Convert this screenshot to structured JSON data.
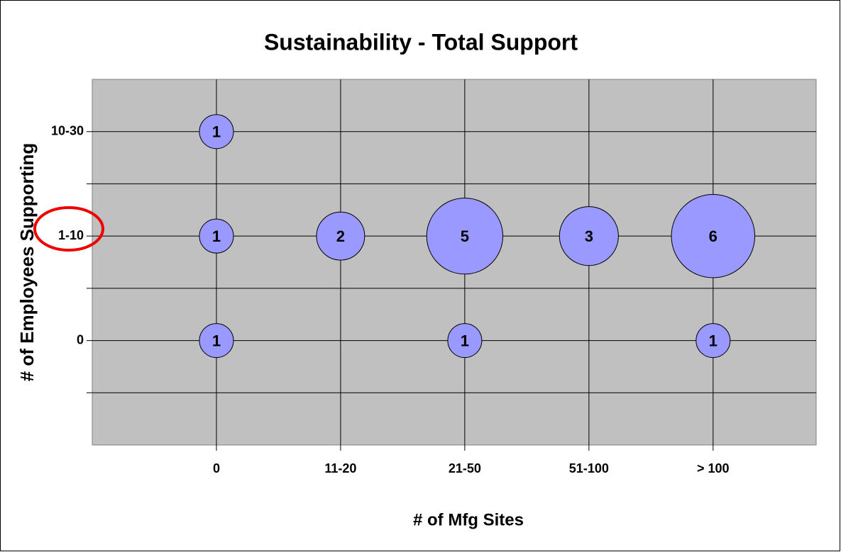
{
  "chart_data": {
    "type": "bubble",
    "title": "Sustainability - Total Support",
    "x_label": "# of Mfg Sites",
    "y_label": "# of Employees Supporting",
    "xlim": [
      0,
      5.83
    ],
    "ylim": [
      -2,
      5
    ],
    "xticks": [
      {
        "value": 1,
        "label": "0"
      },
      {
        "value": 2,
        "label": "11-20"
      },
      {
        "value": 3,
        "label": "21-50"
      },
      {
        "value": 4,
        "label": "51-100"
      },
      {
        "value": 5,
        "label": "> 100"
      }
    ],
    "yticks": [
      0,
      {
        "value": 2,
        "label": "1-10"
      },
      {
        "value": 4,
        "label": "10-30"
      }
    ],
    "ygrid": [
      -1,
      1,
      3
    ],
    "grid": true,
    "series": [
      {
        "color": "#9999ff",
        "x": [
          1,
          1,
          1,
          2,
          3,
          3,
          4,
          5,
          5
        ],
        "y": [
          4,
          2,
          0,
          2,
          2,
          0,
          2,
          2,
          0
        ],
        "sizes": [
          1,
          1,
          1,
          2,
          5,
          1,
          3,
          6,
          1
        ]
      }
    ]
  }
}
